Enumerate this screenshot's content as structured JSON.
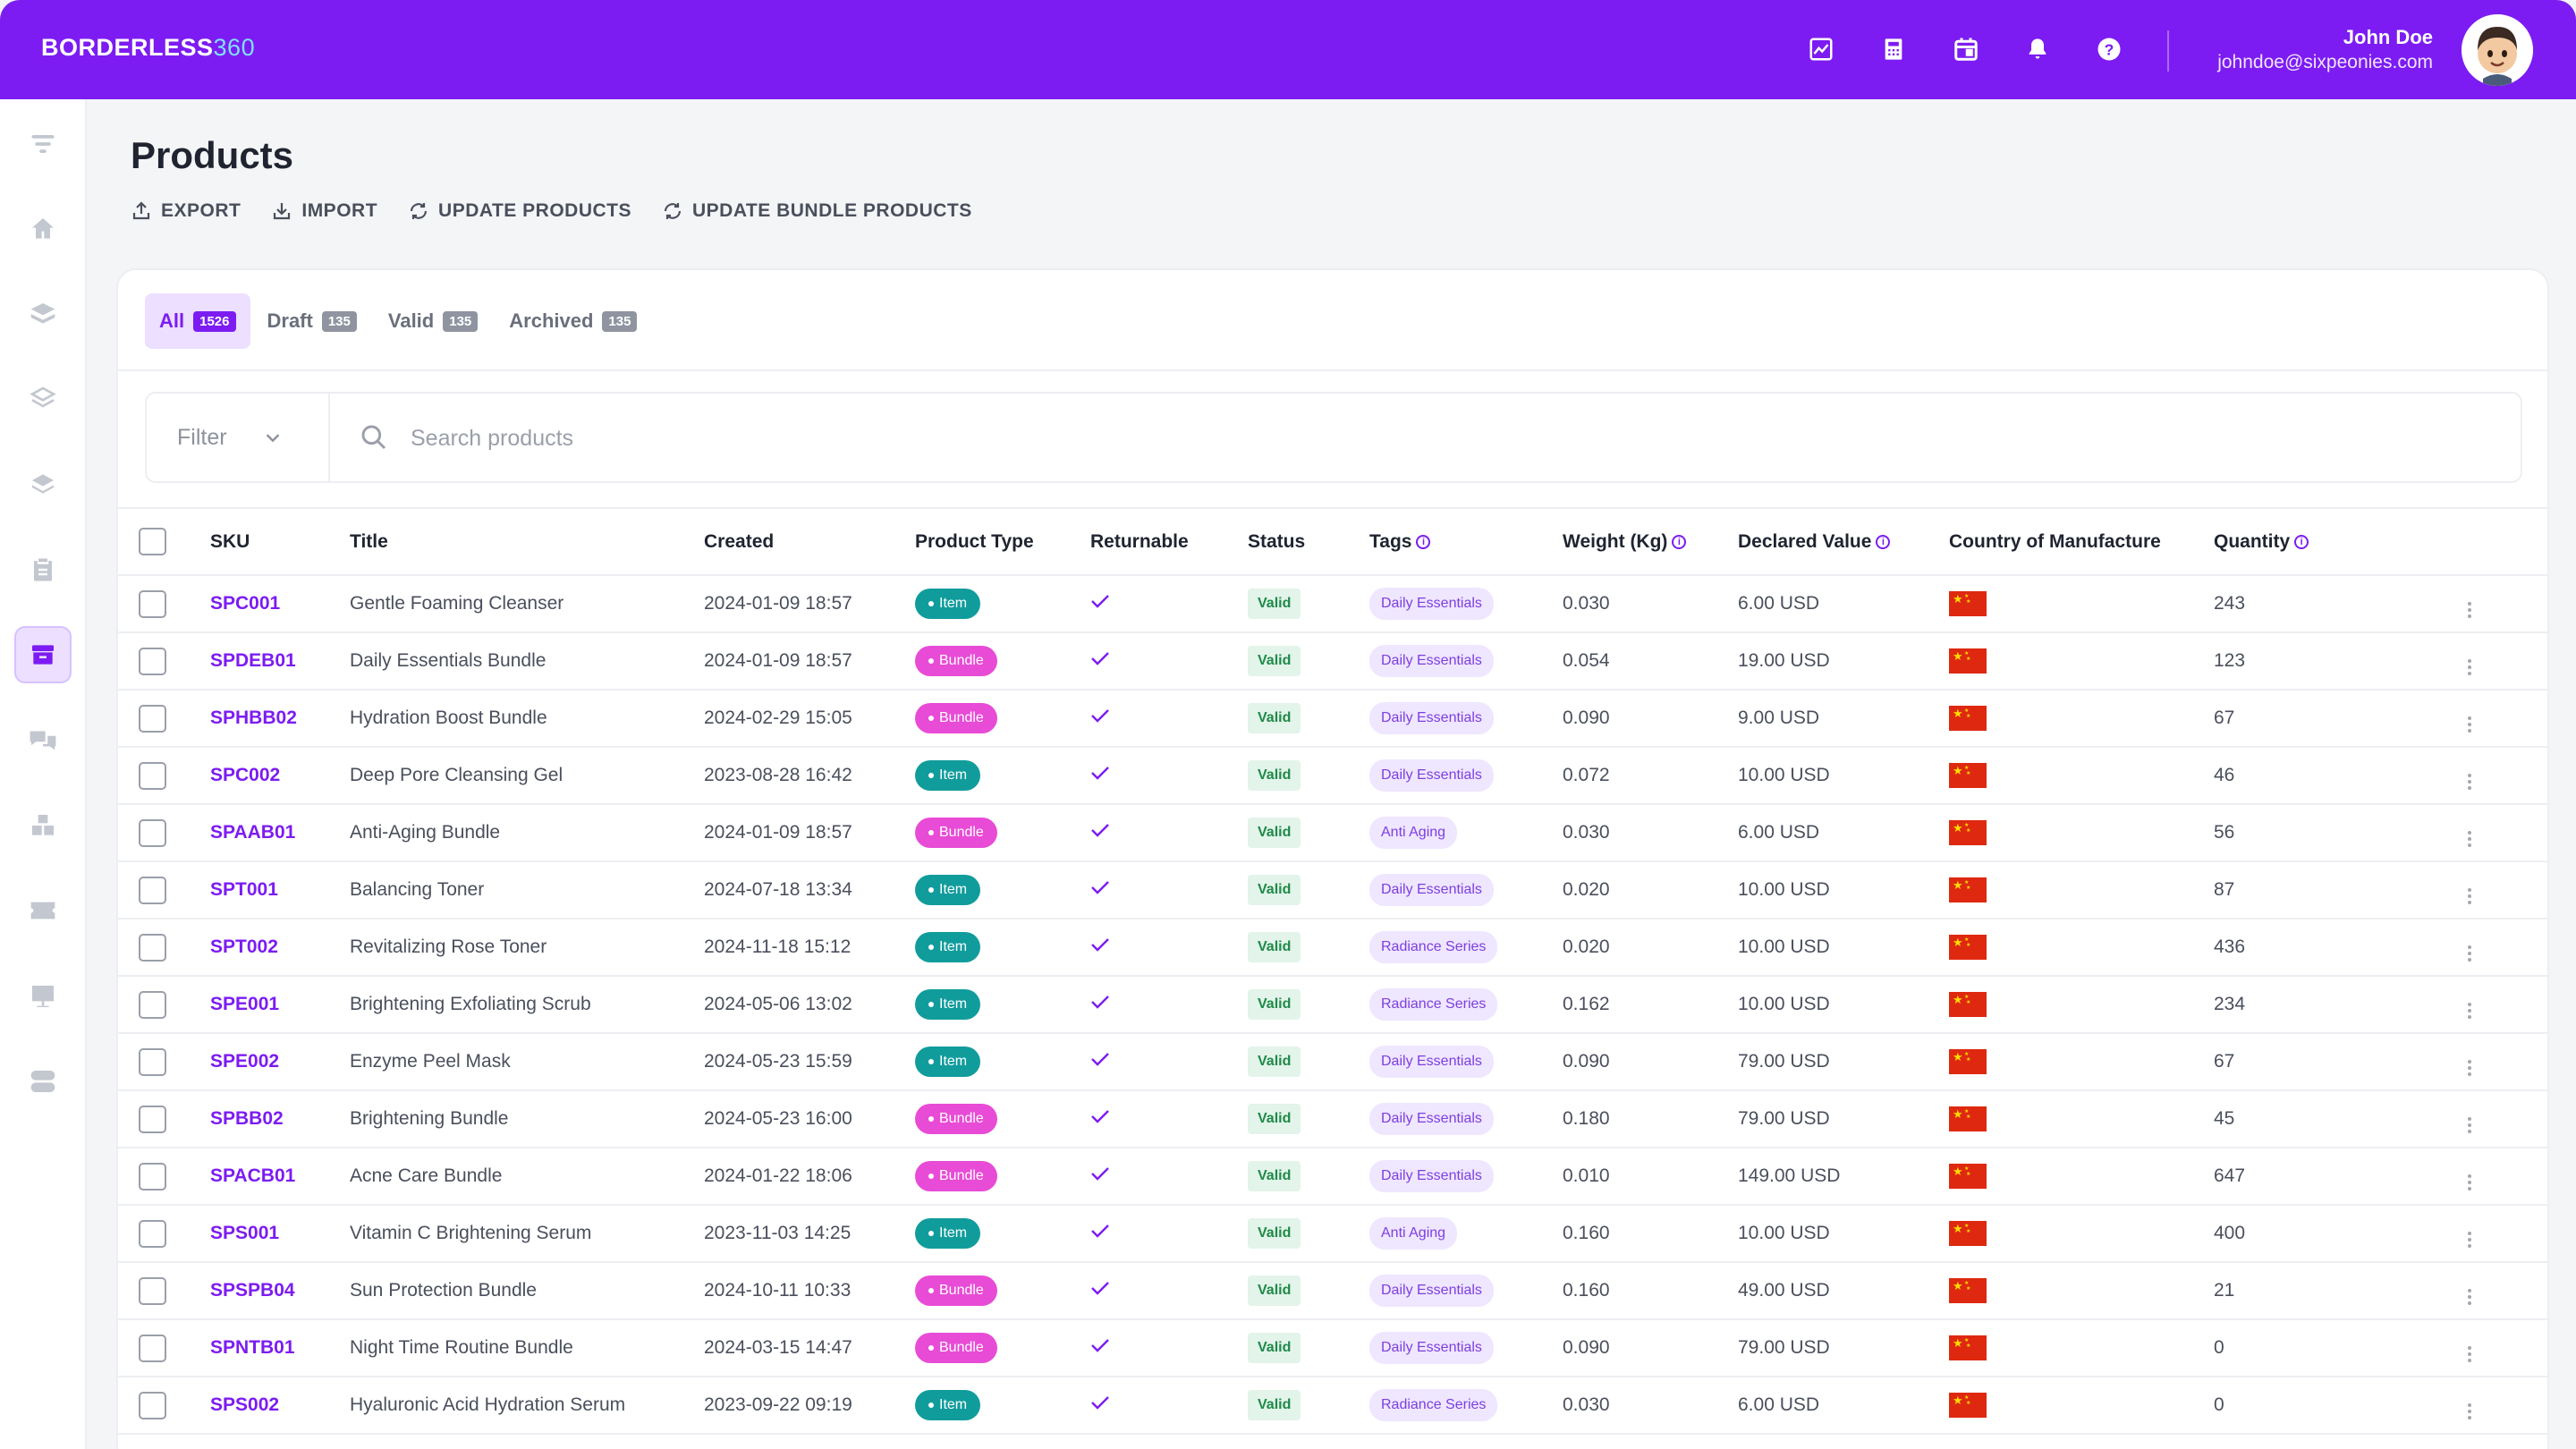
{
  "app": {
    "logo_main": "BORDERLESS",
    "logo_num": "360"
  },
  "header": {
    "icons": [
      "chart-icon",
      "calculator-icon",
      "calendar-icon",
      "bell-icon",
      "help-icon"
    ],
    "user_name": "John Doe",
    "user_email": "johndoe@sixpeonies.com"
  },
  "sidebar": {
    "items": [
      "filter-icon",
      "home-icon",
      "layers-icon",
      "layers-outline-icon",
      "stack-icon",
      "clipboard-icon",
      "archive-icon",
      "chat-icon",
      "boxes-icon",
      "ticket-icon",
      "presentation-icon",
      "toggle-icon"
    ],
    "active_index": 6
  },
  "page": {
    "title": "Products",
    "actions": [
      {
        "label": "EXPORT",
        "icon": "export-icon"
      },
      {
        "label": "IMPORT",
        "icon": "import-icon"
      },
      {
        "label": "UPDATE PRODUCTS",
        "icon": "refresh-icon"
      },
      {
        "label": "UPDATE BUNDLE PRODUCTS",
        "icon": "refresh-icon"
      }
    ]
  },
  "tabs": [
    {
      "label": "All",
      "count": "1526",
      "active": true
    },
    {
      "label": "Draft",
      "count": "135",
      "active": false
    },
    {
      "label": "Valid",
      "count": "135",
      "active": false
    },
    {
      "label": "Archived",
      "count": "135",
      "active": false
    }
  ],
  "filter": {
    "label": "Filter",
    "search_placeholder": "Search products"
  },
  "table": {
    "columns": [
      "SKU",
      "Title",
      "Created",
      "Product Type",
      "Returnable",
      "Status",
      "Tags",
      "Weight (Kg)",
      "Declared Value",
      "Country of Manufacture",
      "Quantity"
    ],
    "rows": [
      {
        "sku": "SPC001",
        "title": "Gentle Foaming Cleanser",
        "created": "2024-01-09 18:57",
        "type": "Item",
        "status": "Valid",
        "tag": "Daily Essentials",
        "weight": "0.030",
        "value": "6.00 USD",
        "qty": "243"
      },
      {
        "sku": "SPDEB01",
        "title": "Daily Essentials Bundle",
        "created": "2024-01-09 18:57",
        "type": "Bundle",
        "status": "Valid",
        "tag": "Daily Essentials",
        "weight": "0.054",
        "value": "19.00 USD",
        "qty": "123"
      },
      {
        "sku": "SPHBB02",
        "title": "Hydration Boost Bundle",
        "created": "2024-02-29 15:05",
        "type": "Bundle",
        "status": "Valid",
        "tag": "Daily Essentials",
        "weight": "0.090",
        "value": "9.00 USD",
        "qty": "67"
      },
      {
        "sku": "SPC002",
        "title": "Deep Pore Cleansing Gel",
        "created": "2023-08-28 16:42",
        "type": "Item",
        "status": "Valid",
        "tag": "Daily Essentials",
        "weight": "0.072",
        "value": "10.00 USD",
        "qty": "46"
      },
      {
        "sku": "SPAAB01",
        "title": "Anti-Aging Bundle",
        "created": "2024-01-09 18:57",
        "type": "Bundle",
        "status": "Valid",
        "tag": "Anti Aging",
        "weight": "0.030",
        "value": "6.00 USD",
        "qty": "56"
      },
      {
        "sku": "SPT001",
        "title": "Balancing Toner",
        "created": "2024-07-18 13:34",
        "type": "Item",
        "status": "Valid",
        "tag": "Daily Essentials",
        "weight": "0.020",
        "value": "10.00 USD",
        "qty": "87"
      },
      {
        "sku": "SPT002",
        "title": "Revitalizing Rose Toner",
        "created": "2024-11-18 15:12",
        "type": "Item",
        "status": "Valid",
        "tag": "Radiance Series",
        "weight": "0.020",
        "value": "10.00 USD",
        "qty": "436"
      },
      {
        "sku": "SPE001",
        "title": "Brightening Exfoliating Scrub",
        "created": "2024-05-06 13:02",
        "type": "Item",
        "status": "Valid",
        "tag": "Radiance Series",
        "weight": "0.162",
        "value": "10.00 USD",
        "qty": "234"
      },
      {
        "sku": "SPE002",
        "title": "Enzyme Peel Mask",
        "created": "2024-05-23 15:59",
        "type": "Item",
        "status": "Valid",
        "tag": "Daily Essentials",
        "weight": "0.090",
        "value": "79.00 USD",
        "qty": "67"
      },
      {
        "sku": "SPBB02",
        "title": "Brightening Bundle",
        "created": "2024-05-23 16:00",
        "type": "Bundle",
        "status": "Valid",
        "tag": "Daily Essentials",
        "weight": "0.180",
        "value": "79.00 USD",
        "qty": "45"
      },
      {
        "sku": "SPACB01",
        "title": "Acne Care Bundle",
        "created": "2024-01-22 18:06",
        "type": "Bundle",
        "status": "Valid",
        "tag": "Daily Essentials",
        "weight": "0.010",
        "value": "149.00 USD",
        "qty": "647"
      },
      {
        "sku": "SPS001",
        "title": "Vitamin C Brightening Serum",
        "created": "2023-11-03 14:25",
        "type": "Item",
        "status": "Valid",
        "tag": "Anti Aging",
        "weight": "0.160",
        "value": "10.00 USD",
        "qty": "400"
      },
      {
        "sku": "SPSPB04",
        "title": "Sun Protection Bundle",
        "created": "2024-10-11 10:33",
        "type": "Bundle",
        "status": "Valid",
        "tag": "Daily Essentials",
        "weight": "0.160",
        "value": "49.00 USD",
        "qty": "21"
      },
      {
        "sku": "SPNTB01",
        "title": "Night Time Routine Bundle",
        "created": "2024-03-15 14:47",
        "type": "Bundle",
        "status": "Valid",
        "tag": "Daily Essentials",
        "weight": "0.090",
        "value": "79.00 USD",
        "qty": "0"
      },
      {
        "sku": "SPS002",
        "title": "Hyaluronic Acid Hydration Serum",
        "created": "2023-09-22 09:19",
        "type": "Item",
        "status": "Valid",
        "tag": "Radiance Series",
        "weight": "0.030",
        "value": "6.00 USD",
        "qty": "0"
      }
    ]
  },
  "colors": {
    "brand": "#7c1cf2",
    "item": "#119c9c",
    "bundle": "#e84bd6",
    "valid": "#1e8a48"
  }
}
